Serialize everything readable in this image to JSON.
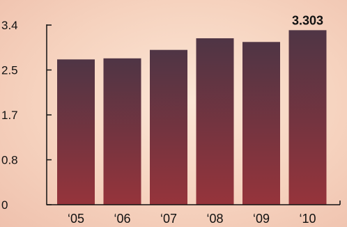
{
  "chart_data": {
    "type": "bar",
    "categories": [
      "‘05",
      "‘06",
      "‘07",
      "‘08",
      "‘09",
      "‘10"
    ],
    "values": [
      2.75,
      2.77,
      2.93,
      3.15,
      3.08,
      3.303
    ],
    "ylim": [
      0,
      3.4
    ],
    "yticks": [
      "0",
      "0.8",
      "1.7",
      "2.5",
      "3.4"
    ],
    "ytick_values": [
      0,
      0.85,
      1.7,
      2.55,
      3.4
    ],
    "data_labels": [
      null,
      null,
      null,
      null,
      null,
      "3.303"
    ],
    "grid": false,
    "colors": {
      "bar_top": "#4f3545",
      "bar_bottom": "#96343b",
      "axis": "#111111"
    }
  }
}
